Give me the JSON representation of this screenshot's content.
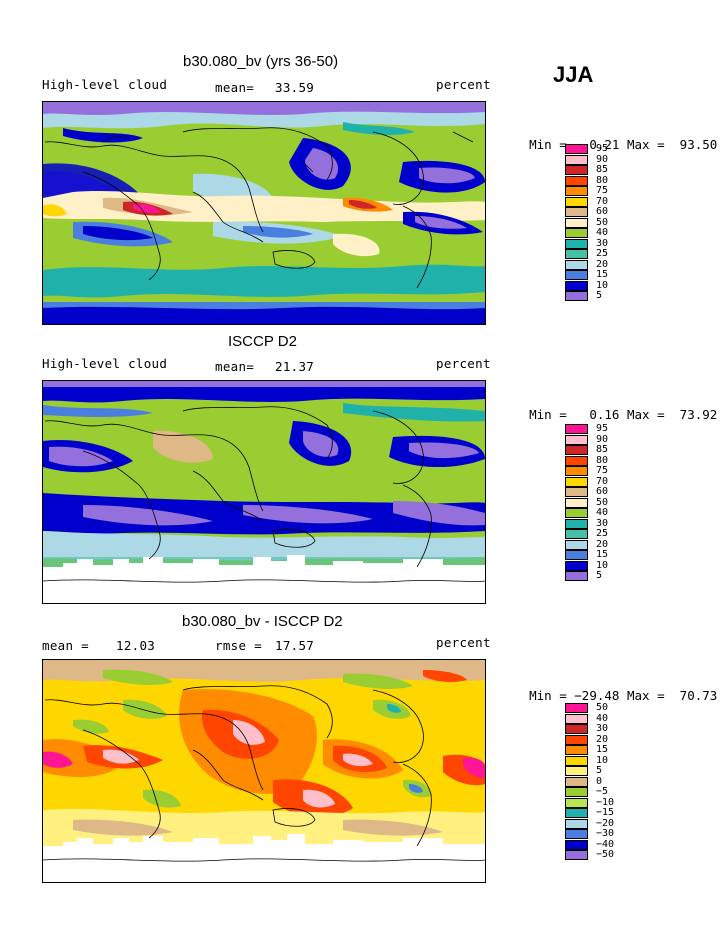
{
  "season": "JJA",
  "panels": [
    {
      "title": "b30.080_bv (yrs 36-50)",
      "left_label": "High-level cloud",
      "stat_label": "mean=",
      "stat_value": "33.59",
      "stat2_label": "",
      "stat2_value": "",
      "units": "percent",
      "min_label": "Min =",
      "min_value": "0.21",
      "max_label": "Max =",
      "max_value": "93.50",
      "legend_labels": [
        "95",
        "90",
        "85",
        "80",
        "75",
        "70",
        "60",
        "50",
        "40",
        "30",
        "25",
        "20",
        "15",
        "10",
        "5"
      ],
      "legend_colors": [
        "#ff1493",
        "#ffc0cb",
        "#cd2626",
        "#ff4500",
        "#ff8c00",
        "#ffd700",
        "#deb887",
        "#fff0c8",
        "#9acd32",
        "#20b2aa",
        "#48c0a8",
        "#add8e6",
        "#4a7fe0",
        "#0000cd",
        "#9370db"
      ]
    },
    {
      "title": "ISCCP D2",
      "left_label": "High-level cloud",
      "stat_label": "mean=",
      "stat_value": "21.37",
      "stat2_label": "",
      "stat2_value": "",
      "units": "percent",
      "min_label": "Min =",
      "min_value": "0.16",
      "max_label": "Max =",
      "max_value": "73.92",
      "legend_labels": [
        "95",
        "90",
        "85",
        "80",
        "75",
        "70",
        "60",
        "50",
        "40",
        "30",
        "25",
        "20",
        "15",
        "10",
        "5"
      ],
      "legend_colors": [
        "#ff1493",
        "#ffc0cb",
        "#cd2626",
        "#ff4500",
        "#ff8c00",
        "#ffd700",
        "#deb887",
        "#fff0c8",
        "#9acd32",
        "#20b2aa",
        "#48c0a8",
        "#add8e6",
        "#4a7fe0",
        "#0000cd",
        "#9370db"
      ]
    },
    {
      "title": "b30.080_bv - ISCCP D2",
      "left_label": "mean =",
      "stat_label": "",
      "stat_value": "",
      "left_value": "12.03",
      "stat2_label": "rmse =",
      "stat2_value": "17.57",
      "units": "percent",
      "min_label": "Min =",
      "min_value": "−29.48",
      "max_label": "Max =",
      "max_value": "70.73",
      "legend_labels": [
        "50",
        "40",
        "30",
        "20",
        "15",
        "10",
        "5",
        "0",
        "−5",
        "−10",
        "−15",
        "−20",
        "−30",
        "−40",
        "−50"
      ],
      "legend_colors": [
        "#ff1493",
        "#ffc0cb",
        "#cd2626",
        "#ff4500",
        "#ff8c00",
        "#ffd700",
        "#fff080",
        "#deb887",
        "#9acd32",
        "#b5e655",
        "#20b2aa",
        "#add8e6",
        "#4a7fe0",
        "#0000cd",
        "#9370db"
      ]
    }
  ]
}
